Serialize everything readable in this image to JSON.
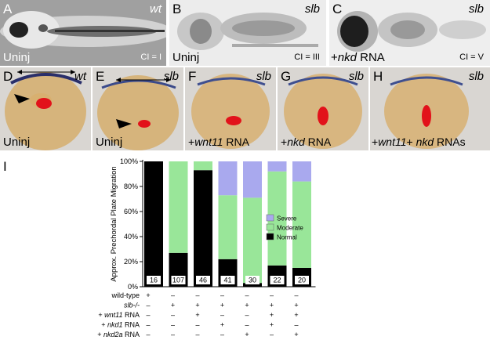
{
  "panels": {
    "A": {
      "letter": "A",
      "genotype": "wt",
      "treatment": "Uninj",
      "ci": "CI = I"
    },
    "B": {
      "letter": "B",
      "genotype": "slb",
      "treatment": "Uninj",
      "ci": "CI = III"
    },
    "C": {
      "letter": "C",
      "genotype": "slb",
      "treatment_prefix": "+",
      "treatment_gene": "nkd",
      "treatment_suffix": " RNA",
      "ci": "CI = V"
    },
    "D": {
      "letter": "D",
      "genotype": "wt",
      "treatment": "Uninj"
    },
    "E": {
      "letter": "E",
      "genotype": "slb",
      "treatment": "Uninj"
    },
    "F": {
      "letter": "F",
      "genotype": "slb",
      "treatment_prefix": "+",
      "treatment_gene": "wnt11",
      "treatment_suffix": " RNA"
    },
    "G": {
      "letter": "G",
      "genotype": "slb",
      "treatment_prefix": "+",
      "treatment_gene": "nkd",
      "treatment_suffix": " RNA"
    },
    "H": {
      "letter": "H",
      "genotype": "slb",
      "treatment_prefix": "+",
      "treatment_gene": "wnt11",
      "treatment_mid": "+ ",
      "treatment_gene2": "nkd",
      "treatment_suffix": " RNAs"
    }
  },
  "figure_i": {
    "letter": "I"
  },
  "chart_data": {
    "type": "bar",
    "stacked": true,
    "ylabel": "Approx. Prechordal Plate Migration",
    "yticks": [
      "0%",
      "20%",
      "40%",
      "60%",
      "80%",
      "100%"
    ],
    "ylim": [
      0,
      100
    ],
    "series": [
      {
        "name": "Normal",
        "color": "#000000",
        "values": [
          100,
          27,
          93,
          22,
          3,
          17,
          15
        ]
      },
      {
        "name": "Moderate",
        "color": "#99e699",
        "values": [
          0,
          73,
          7,
          51,
          68,
          75,
          69
        ]
      },
      {
        "name": "Severe",
        "color": "#a9a9ee",
        "values": [
          0,
          0,
          0,
          27,
          29,
          8,
          16
        ]
      }
    ],
    "legend": {
      "position": "center-right",
      "order": [
        "Severe",
        "Moderate",
        "Normal"
      ]
    },
    "n_counts": [
      "16",
      "107",
      "46",
      "41",
      "30",
      "22",
      "20"
    ],
    "condition_rows": [
      {
        "label": "wild-type",
        "italic_part": "",
        "prefix": "",
        "suffix": "",
        "marks": [
          "+",
          "–",
          "–",
          "–",
          "–",
          "–",
          "–"
        ]
      },
      {
        "label": "",
        "prefix": "",
        "italic_part": "slb-/-",
        "suffix": "",
        "marks": [
          "–",
          "+",
          "+",
          "+",
          "+",
          "+",
          "+"
        ]
      },
      {
        "label": "",
        "prefix": "+ ",
        "italic_part": "wnt11",
        "suffix": " RNA",
        "marks": [
          "–",
          "–",
          "+",
          "–",
          "–",
          "+",
          "+"
        ]
      },
      {
        "label": "",
        "prefix": "+ ",
        "italic_part": "nkd1",
        "suffix": " RNA",
        "marks": [
          "–",
          "–",
          "–",
          "+",
          "–",
          "+",
          "–"
        ]
      },
      {
        "label": "",
        "prefix": "+ ",
        "italic_part": "nkd2a",
        "suffix": " RNA",
        "marks": [
          "–",
          "–",
          "–",
          "–",
          "+",
          "–",
          "+"
        ]
      }
    ]
  }
}
